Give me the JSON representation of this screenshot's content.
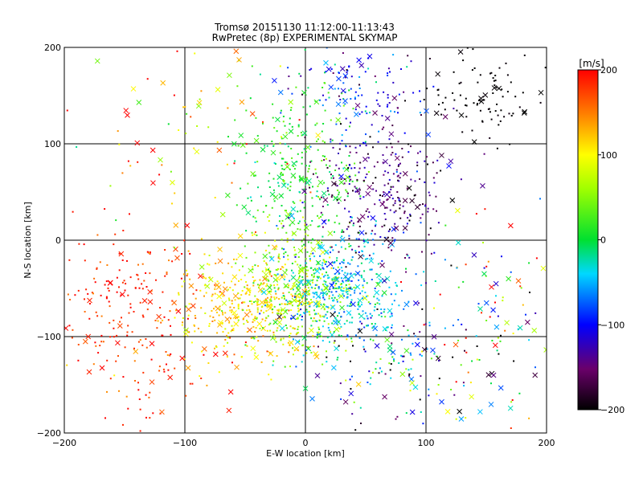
{
  "chart_data": {
    "type": "scatter",
    "title": "Tromsø 20151130 11:12:00-11:13:43",
    "subtitle": "RwPretec (8p) EXPERIMENTAL SKYMAP",
    "xlabel": "E-W location [km]",
    "ylabel": "N-S location [km]",
    "xlim": [
      -200,
      200
    ],
    "ylim": [
      -200,
      200
    ],
    "x_ticks": [
      -200,
      -100,
      0,
      100,
      200
    ],
    "y_ticks": [
      -200,
      -100,
      0,
      100,
      200
    ],
    "x_tick_labels": [
      "−200",
      "−100",
      "0",
      "100",
      "200"
    ],
    "y_tick_labels": [
      "−200",
      "−100",
      "0",
      "100",
      "200"
    ],
    "grid": true,
    "marker_types": [
      "dot",
      "x"
    ],
    "colorbar": {
      "label": "[m/s]",
      "range": [
        -200,
        200
      ],
      "ticks": [
        200,
        100,
        0,
        -100,
        -200
      ],
      "tick_labels": [
        "200",
        "100",
        "0",
        "−100",
        "−200"
      ],
      "colormap": "black-purple-blue-cyan-green-yellow-orange-red"
    },
    "regions": [
      {
        "cx": -150,
        "cy": -60,
        "sx": 35,
        "sy": 40,
        "v": 185,
        "vs": 20,
        "n_dot": 170,
        "n_x": 30
      },
      {
        "cx": -45,
        "cy": -70,
        "sx": 30,
        "sy": 28,
        "v": 115,
        "vs": 25,
        "n_dot": 320,
        "n_x": 45
      },
      {
        "cx": -5,
        "cy": -50,
        "sx": 25,
        "sy": 35,
        "v": 55,
        "vs": 30,
        "n_dot": 320,
        "n_x": 50
      },
      {
        "cx": 30,
        "cy": -50,
        "sx": 25,
        "sy": 28,
        "v": -45,
        "vs": 25,
        "n_dot": 320,
        "n_x": 45
      },
      {
        "cx": -5,
        "cy": 70,
        "sx": 25,
        "sy": 45,
        "v": 15,
        "vs": 20,
        "n_dot": 250,
        "n_x": 40
      },
      {
        "cx": 60,
        "cy": 50,
        "sx": 30,
        "sy": 35,
        "v": -150,
        "vs": 30,
        "n_dot": 260,
        "n_x": 40
      },
      {
        "cx": 45,
        "cy": 160,
        "sx": 30,
        "sy": 25,
        "v": -95,
        "vs": 40,
        "n_dot": 110,
        "n_x": 20
      },
      {
        "cx": 150,
        "cy": 150,
        "sx": 30,
        "sy": 25,
        "v": -200,
        "vs": 5,
        "n_dot": 90,
        "n_x": 15
      },
      {
        "cx": 70,
        "cy": -120,
        "sx": 35,
        "sy": 35,
        "v": -80,
        "vs": 90,
        "n_dot": 140,
        "n_x": 40
      },
      {
        "cx": 150,
        "cy": -80,
        "sx": 35,
        "sy": 60,
        "v": 60,
        "vs": 150,
        "n_dot": 80,
        "n_x": 35
      },
      {
        "cx": -100,
        "cy": 100,
        "sx": 60,
        "sy": 60,
        "v": 120,
        "vs": 90,
        "n_dot": 60,
        "n_x": 30
      },
      {
        "cx": -130,
        "cy": -150,
        "sx": 40,
        "sy": 30,
        "v": 180,
        "vs": 40,
        "n_dot": 40,
        "n_x": 10
      }
    ]
  }
}
